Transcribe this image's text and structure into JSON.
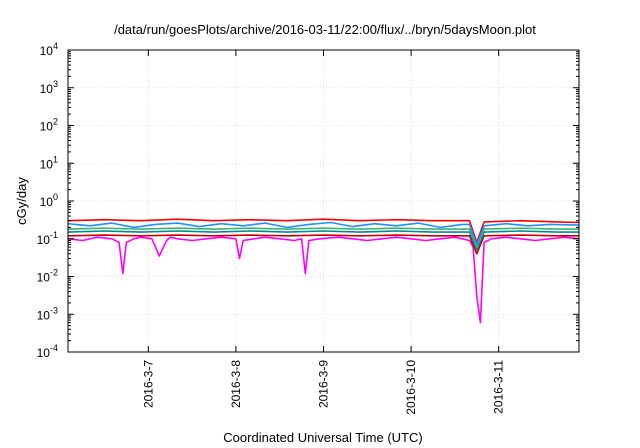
{
  "chart_data": {
    "type": "line",
    "title": "/data/run/goesPlots/archive/2016-03-11/22:00/flux/../bryn/5daysMoon.plot",
    "xlabel": "Coordinated Universal Time (UTC)",
    "ylabel": "cGy/day",
    "yscale": "log",
    "ylim": [
      0.0001,
      10000
    ],
    "xlim": [
      "2016-03-06T02:00",
      "2016-03-11T22:00"
    ],
    "y_ticks": [
      {
        "exp": "-4",
        "value": 0.0001
      },
      {
        "exp": "-3",
        "value": 0.001
      },
      {
        "exp": "-2",
        "value": 0.01
      },
      {
        "exp": "-1",
        "value": 0.1
      },
      {
        "exp": "0",
        "value": 1
      },
      {
        "exp": "1",
        "value": 10
      },
      {
        "exp": "2",
        "value": 100
      },
      {
        "exp": "3",
        "value": 1000
      },
      {
        "exp": "4",
        "value": 10000
      }
    ],
    "y_tick_base": "10",
    "x_ticks": [
      {
        "label": "2016-3-7",
        "value": "2016-03-07"
      },
      {
        "label": "2016-3-8",
        "value": "2016-03-08"
      },
      {
        "label": "2016-3-9",
        "value": "2016-03-09"
      },
      {
        "label": "2016-3-10",
        "value": "2016-03-10"
      },
      {
        "label": "2016-3-11",
        "value": "2016-03-11"
      }
    ],
    "grid": true,
    "legend": "none",
    "series": [
      {
        "color": "#ff00ff",
        "x": [
          "2016-03-06T02:00",
          "2016-03-06T06:00",
          "2016-03-06T10:00",
          "2016-03-06T14:00",
          "2016-03-06T16:00",
          "2016-03-06T17:00",
          "2016-03-06T18:00",
          "2016-03-06T20:00",
          "2016-03-06T22:00",
          "2016-03-07T01:00",
          "2016-03-07T03:00",
          "2016-03-07T05:00",
          "2016-03-07T06:00",
          "2016-03-07T08:00",
          "2016-03-07T12:00",
          "2016-03-07T16:00",
          "2016-03-07T20:00",
          "2016-03-08T00:00",
          "2016-03-08T01:00",
          "2016-03-08T02:00",
          "2016-03-08T05:00",
          "2016-03-08T08:00",
          "2016-03-08T12:00",
          "2016-03-08T16:00",
          "2016-03-08T18:00",
          "2016-03-08T19:00",
          "2016-03-08T20:00",
          "2016-03-08T23:00",
          "2016-03-09T04:00",
          "2016-03-09T08:00",
          "2016-03-09T12:00",
          "2016-03-09T16:00",
          "2016-03-09T20:00",
          "2016-03-10T00:00",
          "2016-03-10T04:00",
          "2016-03-10T08:00",
          "2016-03-10T12:00",
          "2016-03-10T14:00",
          "2016-03-10T16:00",
          "2016-03-10T17:00",
          "2016-03-10T18:00",
          "2016-03-10T19:00",
          "2016-03-10T20:00",
          "2016-03-10T22:00",
          "2016-03-11T02:00",
          "2016-03-11T06:00",
          "2016-03-11T10:00",
          "2016-03-11T14:00",
          "2016-03-11T18:00",
          "2016-03-11T22:00"
        ],
        "y": [
          0.1,
          0.09,
          0.11,
          0.1,
          0.08,
          0.012,
          0.08,
          0.1,
          0.11,
          0.1,
          0.035,
          0.09,
          0.11,
          0.1,
          0.09,
          0.1,
          0.11,
          0.1,
          0.03,
          0.09,
          0.1,
          0.11,
          0.1,
          0.09,
          0.1,
          0.012,
          0.09,
          0.1,
          0.11,
          0.1,
          0.09,
          0.1,
          0.11,
          0.1,
          0.09,
          0.1,
          0.11,
          0.1,
          0.09,
          0.06,
          0.003,
          0.0006,
          0.08,
          0.1,
          0.11,
          0.1,
          0.09,
          0.1,
          0.11,
          0.1
        ]
      },
      {
        "color": "#cc0000",
        "x": [
          "2016-03-06T02:00",
          "2016-03-06T12:00",
          "2016-03-06T22:00",
          "2016-03-07T08:00",
          "2016-03-07T18:00",
          "2016-03-08T04:00",
          "2016-03-08T14:00",
          "2016-03-09T00:00",
          "2016-03-09T10:00",
          "2016-03-09T20:00",
          "2016-03-10T06:00",
          "2016-03-10T16:00",
          "2016-03-10T18:00",
          "2016-03-10T20:00",
          "2016-03-11T06:00",
          "2016-03-11T16:00",
          "2016-03-11T22:00"
        ],
        "y": [
          0.12,
          0.125,
          0.12,
          0.125,
          0.12,
          0.125,
          0.12,
          0.125,
          0.12,
          0.125,
          0.12,
          0.12,
          0.04,
          0.12,
          0.125,
          0.12,
          0.12
        ]
      },
      {
        "color": "#008b8b",
        "x": [
          "2016-03-06T02:00",
          "2016-03-06T12:00",
          "2016-03-06T22:00",
          "2016-03-07T08:00",
          "2016-03-07T18:00",
          "2016-03-08T04:00",
          "2016-03-08T14:00",
          "2016-03-09T00:00",
          "2016-03-09T10:00",
          "2016-03-09T20:00",
          "2016-03-10T06:00",
          "2016-03-10T16:00",
          "2016-03-10T18:00",
          "2016-03-10T20:00",
          "2016-03-11T06:00",
          "2016-03-11T16:00",
          "2016-03-11T22:00"
        ],
        "y": [
          0.15,
          0.16,
          0.15,
          0.16,
          0.15,
          0.16,
          0.15,
          0.16,
          0.15,
          0.16,
          0.15,
          0.15,
          0.05,
          0.15,
          0.16,
          0.15,
          0.15
        ]
      },
      {
        "color": "#3cb371",
        "x": [
          "2016-03-06T02:00",
          "2016-03-06T12:00",
          "2016-03-06T22:00",
          "2016-03-07T08:00",
          "2016-03-07T18:00",
          "2016-03-08T04:00",
          "2016-03-08T14:00",
          "2016-03-09T00:00",
          "2016-03-09T10:00",
          "2016-03-09T20:00",
          "2016-03-10T06:00",
          "2016-03-10T16:00",
          "2016-03-10T18:00",
          "2016-03-10T20:00",
          "2016-03-11T06:00",
          "2016-03-11T16:00",
          "2016-03-11T22:00"
        ],
        "y": [
          0.18,
          0.19,
          0.18,
          0.19,
          0.18,
          0.19,
          0.18,
          0.19,
          0.18,
          0.19,
          0.18,
          0.18,
          0.06,
          0.18,
          0.19,
          0.18,
          0.18
        ]
      },
      {
        "color": "#ff0000",
        "x": [
          "2016-03-06T02:00",
          "2016-03-06T12:00",
          "2016-03-06T22:00",
          "2016-03-07T08:00",
          "2016-03-07T18:00",
          "2016-03-08T04:00",
          "2016-03-08T14:00",
          "2016-03-09T00:00",
          "2016-03-09T10:00",
          "2016-03-09T20:00",
          "2016-03-10T06:00",
          "2016-03-10T16:00",
          "2016-03-10T18:00",
          "2016-03-10T20:00",
          "2016-03-11T06:00",
          "2016-03-11T16:00",
          "2016-03-11T22:00"
        ],
        "y": [
          0.3,
          0.32,
          0.3,
          0.33,
          0.3,
          0.32,
          0.3,
          0.33,
          0.3,
          0.32,
          0.3,
          0.3,
          0.08,
          0.28,
          0.3,
          0.28,
          0.27
        ]
      },
      {
        "color": "#1e90ff",
        "x": [
          "2016-03-06T02:00",
          "2016-03-06T08:00",
          "2016-03-06T14:00",
          "2016-03-06T20:00",
          "2016-03-07T02:00",
          "2016-03-07T08:00",
          "2016-03-07T14:00",
          "2016-03-07T20:00",
          "2016-03-08T02:00",
          "2016-03-08T08:00",
          "2016-03-08T14:00",
          "2016-03-08T20:00",
          "2016-03-09T02:00",
          "2016-03-09T08:00",
          "2016-03-09T14:00",
          "2016-03-09T20:00",
          "2016-03-10T02:00",
          "2016-03-10T08:00",
          "2016-03-10T14:00",
          "2016-03-10T16:00",
          "2016-03-10T18:00",
          "2016-03-10T20:00",
          "2016-03-11T02:00",
          "2016-03-11T08:00",
          "2016-03-11T14:00",
          "2016-03-11T22:00"
        ],
        "y": [
          0.25,
          0.22,
          0.26,
          0.2,
          0.24,
          0.26,
          0.21,
          0.25,
          0.22,
          0.26,
          0.2,
          0.24,
          0.27,
          0.21,
          0.25,
          0.22,
          0.26,
          0.2,
          0.24,
          0.24,
          0.07,
          0.22,
          0.25,
          0.22,
          0.24,
          0.23
        ]
      }
    ]
  }
}
